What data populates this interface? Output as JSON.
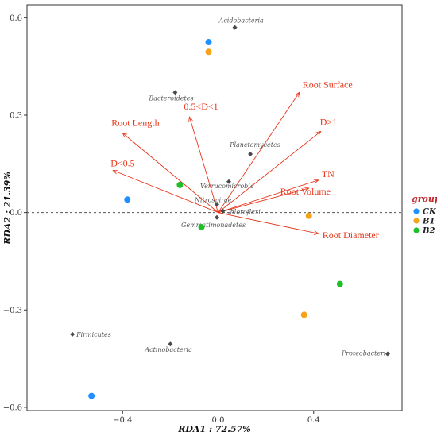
{
  "chart_data": {
    "type": "scatter",
    "subtype": "RDA biplot",
    "title": "",
    "xlabel": "RDA1 : 72.57%",
    "ylabel": "RDA2 : 21.39%",
    "xlim": [
      -0.8,
      0.77
    ],
    "ylim": [
      -0.61,
      0.64
    ],
    "x_ticks": [
      {
        "value": -0.4,
        "label": "−0.4"
      },
      {
        "value": 0.0,
        "label": "0.0"
      },
      {
        "value": 0.4,
        "label": "0.4"
      }
    ],
    "y_ticks": [
      {
        "value": -0.6,
        "label": "−0.6"
      },
      {
        "value": -0.3,
        "label": "−0.3"
      },
      {
        "value": 0.0,
        "label": "0.0"
      },
      {
        "value": 0.3,
        "label": "0.3"
      },
      {
        "value": 0.6,
        "label": "0.6"
      }
    ],
    "grid": false,
    "reference_lines": {
      "x": 0,
      "y": 0,
      "style": "dashed"
    },
    "legend": {
      "title": "group",
      "position": "right",
      "entries": [
        {
          "name": "CK",
          "color": "#1e90ff"
        },
        {
          "name": "B1",
          "color": "#f5a31a"
        },
        {
          "name": "B2",
          "color": "#1fbf2a"
        }
      ]
    },
    "series": [
      {
        "name": "CK",
        "color": "#1e90ff",
        "points": [
          {
            "x": -0.04,
            "y": 0.525
          },
          {
            "x": -0.38,
            "y": 0.04
          },
          {
            "x": -0.53,
            "y": -0.565
          }
        ]
      },
      {
        "name": "B1",
        "color": "#f5a31a",
        "points": [
          {
            "x": -0.04,
            "y": 0.495
          },
          {
            "x": 0.38,
            "y": -0.01
          },
          {
            "x": 0.36,
            "y": -0.315
          }
        ]
      },
      {
        "name": "B2",
        "color": "#1fbf2a",
        "points": [
          {
            "x": -0.16,
            "y": 0.085
          },
          {
            "x": -0.07,
            "y": -0.045
          },
          {
            "x": 0.51,
            "y": -0.22
          }
        ]
      }
    ],
    "taxa": [
      {
        "name": "Acidobacteria",
        "x": 0.07,
        "y": 0.57
      },
      {
        "name": "Bacteroidetes",
        "x": -0.18,
        "y": 0.37
      },
      {
        "name": "Planctomycetes",
        "x": 0.135,
        "y": 0.18
      },
      {
        "name": "Verrucomicrobia",
        "x": 0.045,
        "y": 0.095
      },
      {
        "name": "Nitrospirae",
        "x": -0.005,
        "y": 0.025
      },
      {
        "name": "Chloroflexi",
        "x": 0.02,
        "y": 0.005
      },
      {
        "name": "Gemmatimonadetes",
        "x": -0.005,
        "y": -0.015
      },
      {
        "name": "Firmicutes",
        "x": -0.61,
        "y": -0.375
      },
      {
        "name": "Actinobacteria",
        "x": -0.2,
        "y": -0.405
      },
      {
        "name": "Proteobacteria",
        "x": 0.71,
        "y": -0.435
      }
    ],
    "environmental_vectors": [
      {
        "name": "Root Surface",
        "x": 0.34,
        "y": 0.37
      },
      {
        "name": "D>1",
        "x": 0.43,
        "y": 0.25
      },
      {
        "name": "0.5<D<1",
        "x": -0.12,
        "y": 0.295
      },
      {
        "name": "Root Length",
        "x": -0.4,
        "y": 0.245
      },
      {
        "name": "D<0.5",
        "x": -0.44,
        "y": 0.13
      },
      {
        "name": "TN",
        "x": 0.42,
        "y": 0.1
      },
      {
        "name": "Root Volume",
        "x": 0.38,
        "y": 0.075
      },
      {
        "name": "Root Diameter",
        "x": 0.42,
        "y": -0.065
      }
    ]
  }
}
